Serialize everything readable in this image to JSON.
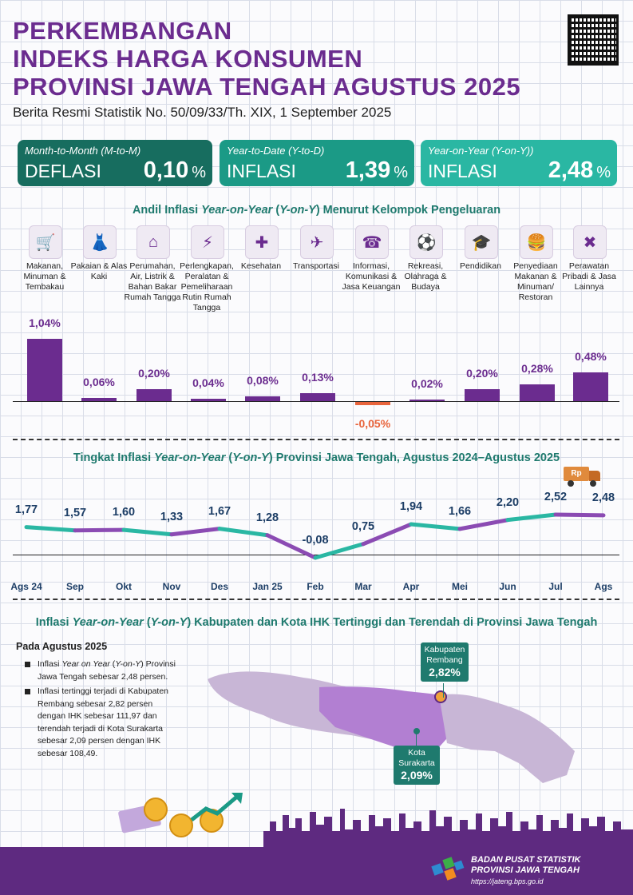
{
  "header": {
    "title_lines": [
      "PERKEMBANGAN",
      "INDEKS HARGA KONSUMEN",
      "PROVINSI JAWA TENGAH AGUSTUS 2025"
    ],
    "subtitle": "Berita Resmi Statistik No. 50/09/33/Th. XIX, 1 September 2025"
  },
  "cards": [
    {
      "label": "Month-to-Month (M-to-M)",
      "kind": "DEFLASI",
      "value": "0,10",
      "unit": "%",
      "color": "#176d5f"
    },
    {
      "label": "Year-to-Date (Y-to-D)",
      "kind": "INFLASI",
      "value": "1,39",
      "unit": "%",
      "color": "#1b9a86"
    },
    {
      "label": "Year-on-Year (Y-on-Y))",
      "kind": "INFLASI",
      "value": "2,48",
      "unit": "%",
      "color": "#2ab7a3"
    }
  ],
  "section1": {
    "title_pre": "Andil Inflasi ",
    "title_em": "Year-on-Year",
    "title_mid": " (",
    "title_em2": "Y-on-Y",
    "title_post": ") Menurut Kelompok Pengeluaran"
  },
  "section2": {
    "title_pre": "Tingkat Inflasi ",
    "title_em": "Year-on-Year",
    "title_mid": " (",
    "title_em2": "Y-on-Y",
    "title_post": ") Provinsi Jawa Tengah, Agustus 2024–Agustus 2025",
    "truck_label": "Rp"
  },
  "section3": {
    "title_pre": "Inflasi ",
    "title_em": "Year-on-Year",
    "title_mid": " (",
    "title_em2": "Y-on-Y",
    "title_post": ") Kabupaten dan Kota IHK Tertinggi dan Terendah di Provinsi Jawa Tengah",
    "head": "Pada Agustus 2025",
    "bullet1_a": "Inflasi ",
    "bullet1_em": "Year on Year",
    "bullet1_b": " (",
    "bullet1_em2": "Y-on-Y",
    "bullet1_c": ") Provinsi Jawa Tengah sebesar 2,48 persen.",
    "bullet2": "Inflasi tertinggi terjadi di Kabupaten Rembang sebesar 2,82 persen dengan IHK sebesar 111,97 dan terendah terjadi di Kota Surakarta sebesar 2,09 persen dengan IHK sebesar 108,49.",
    "callout_high": {
      "name": "Kabupaten Rembang",
      "value": "2,82%"
    },
    "callout_low": {
      "name": "Kota Surakarta",
      "value": "2,09%"
    }
  },
  "footer": {
    "org_line1": "BADAN PUSAT STATISTIK",
    "org_line2": "PROVINSI JAWA TENGAH",
    "url": "https://jateng.bps.go.id"
  },
  "icons": [
    "basket-icon",
    "dress-icon",
    "house-icon",
    "plug-icon",
    "medical-kit-icon",
    "airplane-icon",
    "phone-icon",
    "soccer-player-icon",
    "graduation-cap-icon",
    "fast-food-icon",
    "tools-icon"
  ],
  "chart_data": [
    {
      "type": "bar",
      "categories": [
        "Makanan, Minuman & Tembakau",
        "Pakaian & Alas Kaki",
        "Perumahan, Air, Listrik & Bahan Bakar Rumah Tangga",
        "Perlengkapan, Peralatan & Pemeliharaan Rutin Rumah Tangga",
        "Kesehatan",
        "Transportasi",
        "Informasi, Komunikasi & Jasa Keuangan",
        "Rekreasi, Olahraga & Budaya",
        "Pendidikan",
        "Penyediaan Makanan & Minuman/ Restoran",
        "Perawatan Pribadi & Jasa Lainnya"
      ],
      "values": [
        1.04,
        0.06,
        0.2,
        0.04,
        0.08,
        0.13,
        -0.05,
        0.02,
        0.2,
        0.28,
        0.48
      ],
      "labels": [
        "1,04%",
        "0,06%",
        "0,20%",
        "0,04%",
        "0,08%",
        "0,13%",
        "-0,05%",
        "0,02%",
        "0,20%",
        "0,28%",
        "0,48%"
      ],
      "bar_color": "#6b2c8f",
      "negative_color": "#e8643c",
      "ylim": [
        -0.05,
        1.04
      ]
    },
    {
      "type": "line",
      "x": [
        "Ags 24",
        "Sep",
        "Okt",
        "Nov",
        "Des",
        "Jan 25",
        "Feb",
        "Mar",
        "Apr",
        "Mei",
        "Jun",
        "Jul",
        "Ags"
      ],
      "values": [
        1.77,
        1.57,
        1.6,
        1.33,
        1.67,
        1.28,
        -0.08,
        0.75,
        1.94,
        1.66,
        2.2,
        2.52,
        2.48
      ],
      "labels": [
        "1,77",
        "1,57",
        "1,60",
        "1,33",
        "1,67",
        "1,28",
        "-0,08",
        "0,75",
        "1,94",
        "1,66",
        "2,20",
        "2,52",
        "2,48"
      ],
      "segment_colors": [
        "#2ab7a3",
        "#8b4bb3"
      ],
      "ylim": [
        -0.08,
        2.52
      ]
    }
  ]
}
